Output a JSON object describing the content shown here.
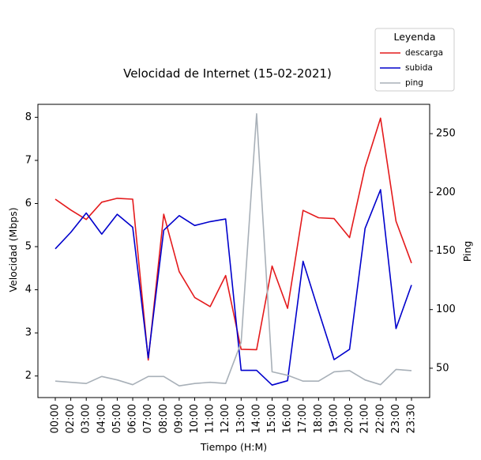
{
  "chart_data": {
    "type": "line",
    "title": "Velocidad de Internet (15-02-2021)",
    "xlabel": "Tiempo (H:M)",
    "ylabel": "Velocidad (Mbps)",
    "ylabel_right": "Ping",
    "grid": false,
    "legend": {
      "title": "Leyenda",
      "placement": "top-right, above plot",
      "entries": [
        "descarga",
        "subida",
        "ping"
      ]
    },
    "categories": [
      "00:00",
      "02:00",
      "03:00",
      "04:00",
      "05:00",
      "06:00",
      "07:00",
      "08:00",
      "09:00",
      "10:00",
      "11:00",
      "12:00",
      "13:00",
      "14:00",
      "15:00",
      "16:00",
      "17:00",
      "18:00",
      "19:00",
      "20:00",
      "21:00",
      "22:00",
      "23:00",
      "23:30"
    ],
    "ylim": [
      1.5,
      8.3
    ],
    "y_ticks": [
      2,
      3,
      4,
      5,
      6,
      7,
      8
    ],
    "ylim_right": [
      25,
      275
    ],
    "y_ticks_right": [
      50,
      100,
      150,
      200,
      250
    ],
    "series": [
      {
        "name": "descarga",
        "axis": "left",
        "color": "#e41a1c",
        "values": [
          6.1,
          5.85,
          5.63,
          6.03,
          6.12,
          6.1,
          2.37,
          5.75,
          4.42,
          3.82,
          3.61,
          4.33,
          2.62,
          2.61,
          4.55,
          3.57,
          5.84,
          5.67,
          5.65,
          5.21,
          6.84,
          7.98,
          5.59,
          4.62
        ]
      },
      {
        "name": "subida",
        "axis": "left",
        "color": "#0000cc",
        "values": [
          4.95,
          5.33,
          5.78,
          5.29,
          5.75,
          5.45,
          2.42,
          5.38,
          5.72,
          5.49,
          5.58,
          5.64,
          2.13,
          2.13,
          1.79,
          1.89,
          4.66,
          3.51,
          2.38,
          2.62,
          5.42,
          6.32,
          3.1,
          4.11
        ]
      },
      {
        "name": "ping",
        "axis": "right",
        "color": "#a8b0b8",
        "values": [
          39,
          38,
          37,
          43,
          40,
          36,
          43,
          43,
          35,
          37,
          38,
          37,
          72,
          267,
          47,
          44,
          39,
          39,
          47,
          48,
          40,
          36,
          49,
          48
        ]
      }
    ]
  }
}
